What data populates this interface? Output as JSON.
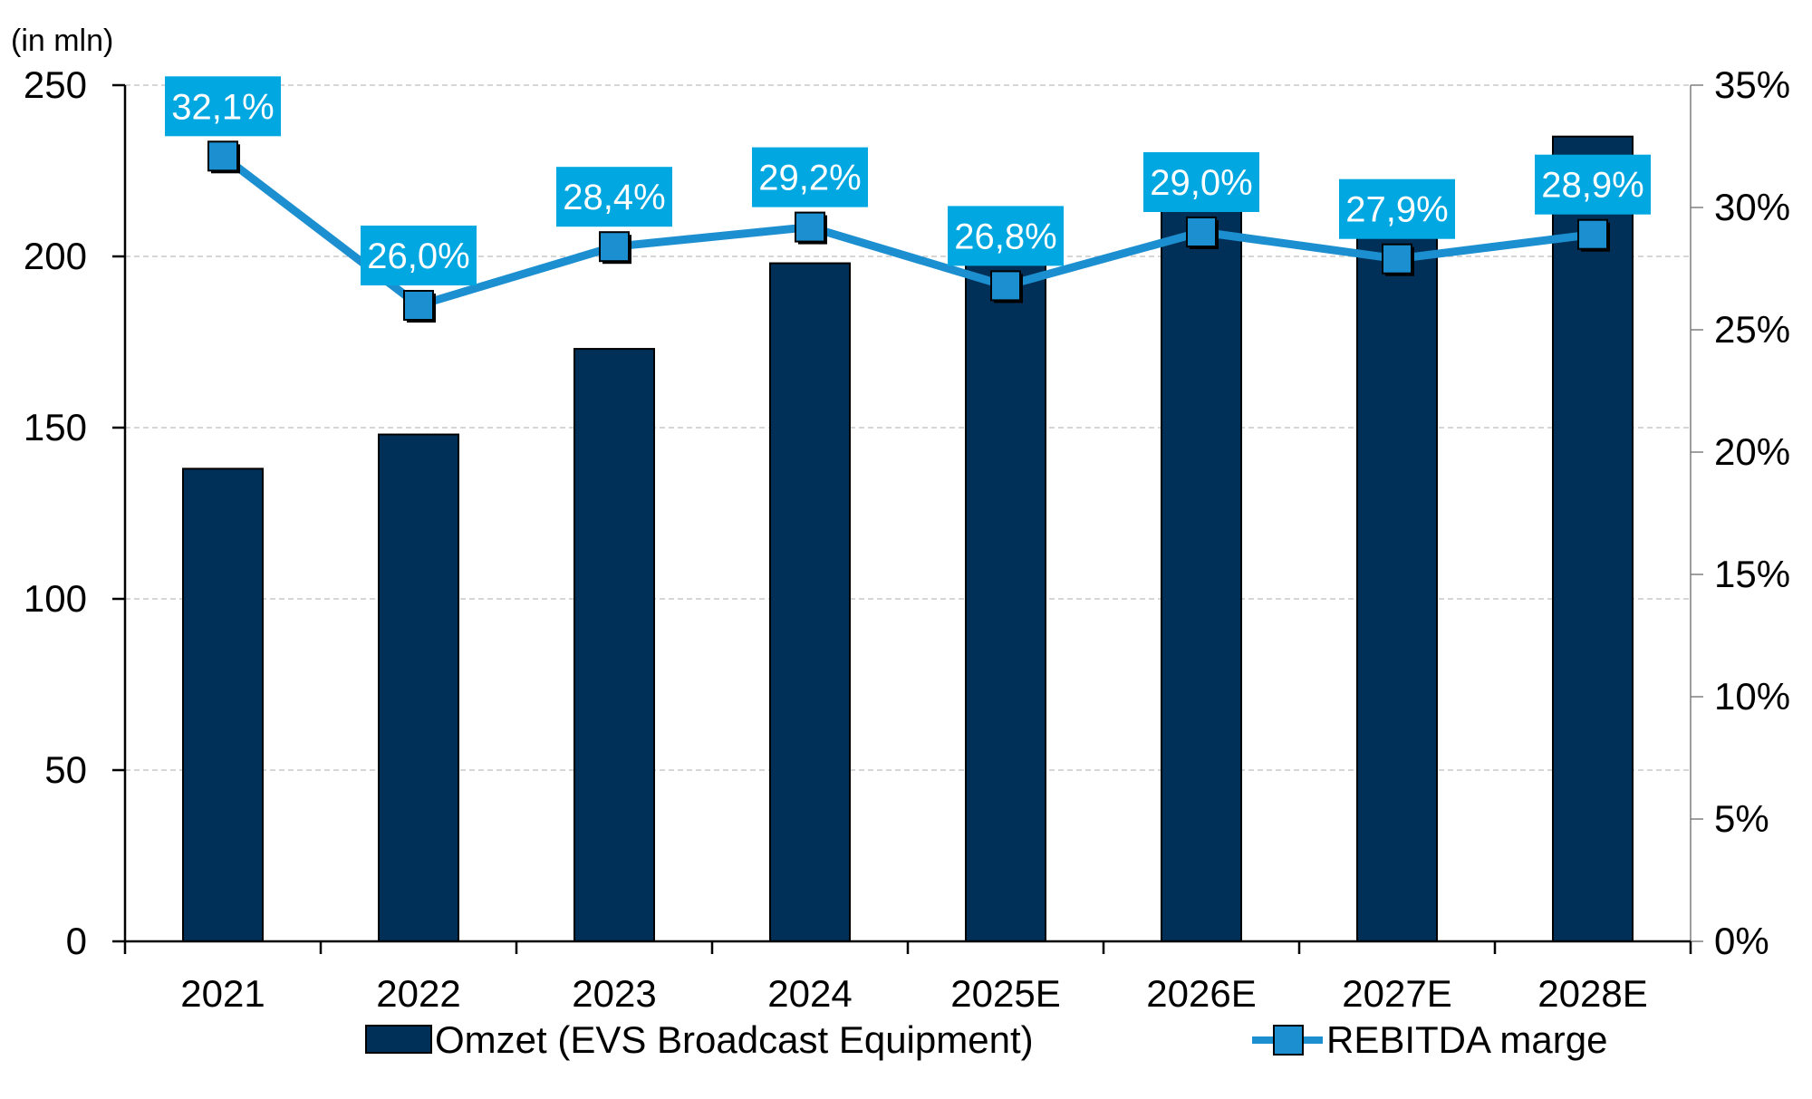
{
  "chart_data": {
    "type": "bar",
    "combo": "bar + line (secondary axis)",
    "categories": [
      "2021",
      "2022",
      "2023",
      "2024",
      "2025E",
      "2026E",
      "2027E",
      "2028E"
    ],
    "unit_label": "(in mln)",
    "series": [
      {
        "name": "Omzet (EVS Broadcast Equipment)",
        "type": "bar",
        "axis": "left",
        "values": [
          138,
          148,
          173,
          198,
          200,
          216,
          207,
          235
        ]
      },
      {
        "name": "REBITDA marge",
        "type": "line",
        "axis": "right",
        "marker": "square",
        "values": [
          32.1,
          26.0,
          28.4,
          29.2,
          26.8,
          29.0,
          27.9,
          28.9
        ],
        "labels": [
          "32,1%",
          "26,0%",
          "28,4%",
          "29,2%",
          "26,8%",
          "29,0%",
          "27,9%",
          "28,9%"
        ]
      }
    ],
    "y_left": {
      "min": 0,
      "max": 250,
      "ticks": [
        0,
        50,
        100,
        150,
        200,
        250
      ],
      "tick_labels": [
        "0",
        "50",
        "100",
        "150",
        "200",
        "250"
      ]
    },
    "y_right": {
      "min": 0,
      "max": 35,
      "ticks": [
        0,
        5,
        10,
        15,
        20,
        25,
        30,
        35
      ],
      "tick_labels": [
        "0%",
        "5%",
        "10%",
        "15%",
        "20%",
        "25%",
        "30%",
        "35%"
      ]
    },
    "grid": "horizontal dashed",
    "legend_position": "bottom",
    "colors": {
      "bar": "#003057",
      "line": "#1b8fd0",
      "marker": "#1b8fd0",
      "label_box": "#00a7e1",
      "grid": "#c8c8c8",
      "axis": "#000000"
    }
  }
}
